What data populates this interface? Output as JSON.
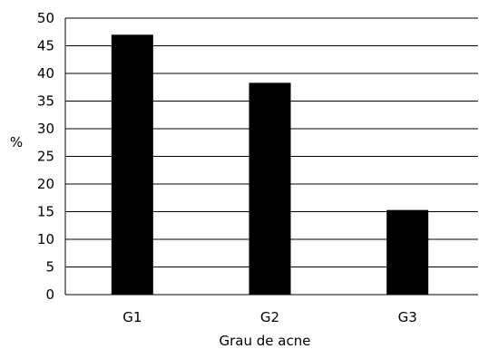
{
  "chart_data": {
    "type": "bar",
    "categories": [
      "G1",
      "G2",
      "G3"
    ],
    "values": [
      47,
      38.3,
      15.3
    ],
    "ylabel": "%",
    "xlabel": "Grau de acne",
    "ylim": [
      0,
      50
    ],
    "yticks": [
      0,
      5,
      10,
      15,
      20,
      25,
      30,
      35,
      40,
      45,
      50
    ],
    "grid": true,
    "bar_color": "#000000",
    "grid_color": "#000000"
  }
}
